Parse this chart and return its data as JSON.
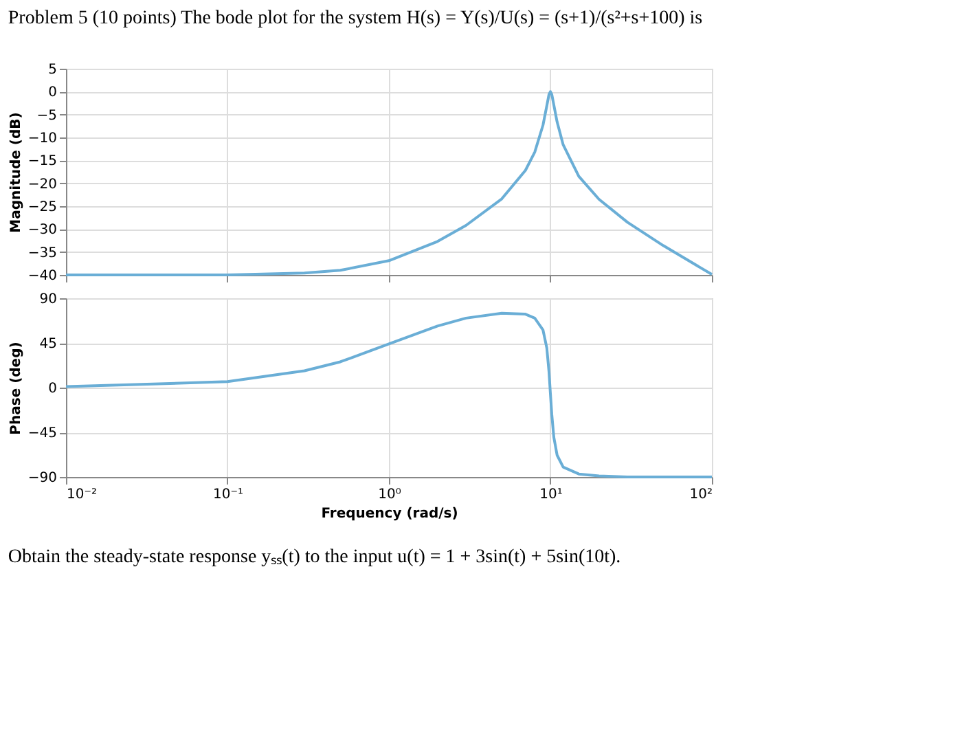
{
  "chart_data": [
    {
      "type": "line",
      "title": "Problem 5 (10 points) The bode plot for the system H(s) = Y(s)/U(s) = (s+1)/(s²+s+100) is",
      "ylabel": "Magnitude (dB)",
      "log": "x",
      "grid": true,
      "tick_labels": "y",
      "x": [
        0.01,
        0.1,
        0.3,
        0.5,
        1,
        2,
        3,
        5,
        7,
        8,
        9,
        9.5,
        9.8,
        10,
        10.2,
        10.5,
        11,
        12,
        15,
        20,
        30,
        50,
        100
      ],
      "series": [
        {
          "color": "#6aaed6",
          "values": [
            -40.0,
            -40.0,
            -39.6,
            -39.0,
            -36.9,
            -32.7,
            -29.2,
            -23.4,
            -17.2,
            -13.2,
            -7.3,
            -3.1,
            -0.6,
            0.0,
            -0.6,
            -2.9,
            -6.6,
            -11.6,
            -18.5,
            -23.5,
            -28.5,
            -33.6,
            -39.9
          ]
        }
      ],
      "xlim": [
        0.01,
        100
      ],
      "xticks": [
        {
          "value": 0.01,
          "label": null
        },
        {
          "value": 0.1,
          "label": null
        },
        {
          "value": 1,
          "label": null
        },
        {
          "value": 10,
          "label": null
        },
        {
          "value": 100,
          "label": null
        }
      ],
      "ylim": [
        -40,
        5
      ],
      "yticks": [
        5,
        0,
        -5,
        -10,
        -15,
        -20,
        -25,
        -30,
        -35,
        -40
      ]
    },
    {
      "type": "line",
      "ylabel": "Phase (deg)",
      "xlabel": "Frequency (rad/s)",
      "log": "x",
      "grid": true,
      "annotations": [
        "Obtain the steady-state response yₛₛ(t) to the input u(t) = 1 + 3sin(t) + 5sin(10t)."
      ],
      "x": [
        0.01,
        0.1,
        0.3,
        0.5,
        1,
        2,
        3,
        5,
        7,
        8,
        9,
        9.5,
        9.8,
        10,
        10.2,
        10.5,
        11,
        12,
        15,
        20,
        30,
        50,
        100
      ],
      "series": [
        {
          "color": "#6aaed6",
          "values": [
            1,
            6,
            17,
            26,
            44,
            62,
            70,
            75,
            74,
            70,
            58,
            40,
            16,
            -6,
            -27,
            -50,
            -68,
            -80,
            -87,
            -89,
            -90,
            -90,
            -90
          ]
        }
      ],
      "xlim": [
        0.01,
        100
      ],
      "xticks": [
        {
          "value": 0.01,
          "label": "10⁻²"
        },
        {
          "value": 0.1,
          "label": "10⁻¹"
        },
        {
          "value": 1,
          "label": "10⁰"
        },
        {
          "value": 10,
          "label": "10¹"
        },
        {
          "value": 100,
          "label": "10²"
        }
      ],
      "ylim": [
        -90,
        90
      ],
      "yticks": [
        90,
        45,
        0,
        -45,
        -90
      ]
    }
  ]
}
